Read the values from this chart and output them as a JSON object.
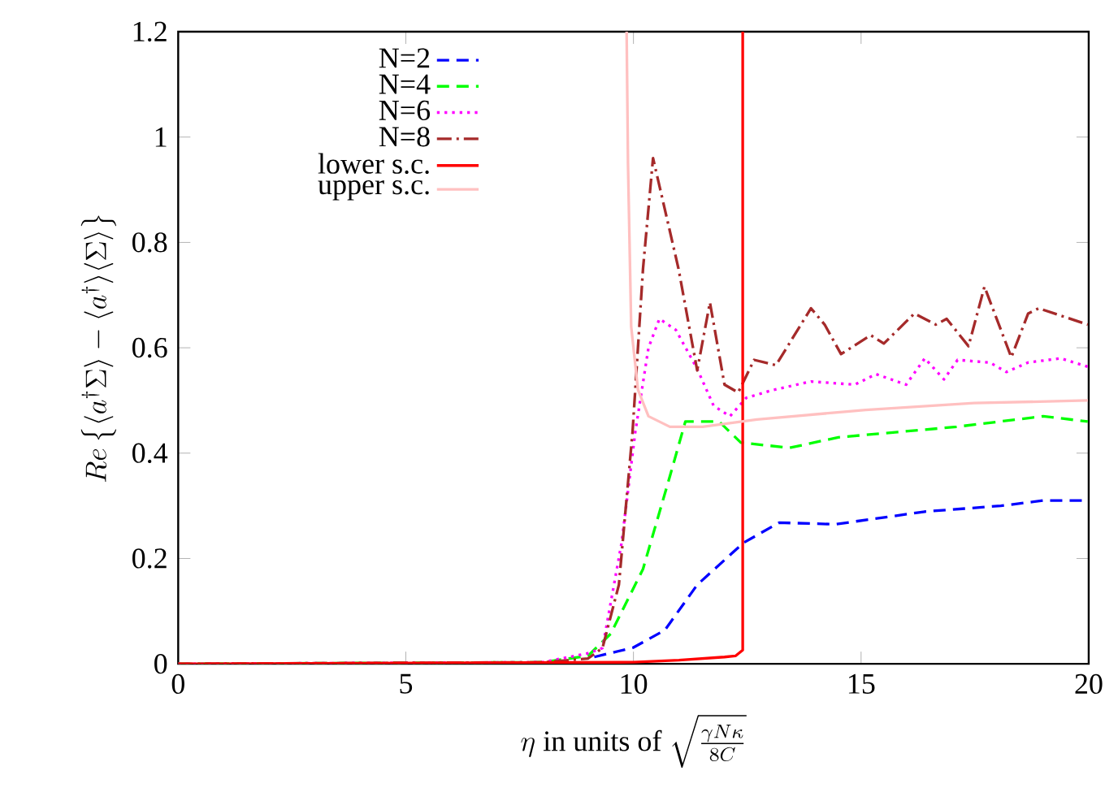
{
  "chart_data": {
    "type": "line",
    "xlabel": "\\eta\\text{ in units of }\\sqrt{\\frac{\\gamma N\\kappa}{8C}}",
    "ylabel": "Re\\left\\{\\langle a^{\\dagger}\\Sigma\\rangle-\\langle a^{\\dagger}\\rangle\\langle\\Sigma\\rangle\\right\\}",
    "xlim": [
      0,
      20
    ],
    "ylim": [
      0,
      1.2
    ],
    "xticks": [
      0,
      5,
      10,
      15,
      20
    ],
    "yticks": [
      0,
      0.2,
      0.4,
      0.6,
      0.8,
      1,
      1.2
    ],
    "legend": "top left",
    "grid": false,
    "marker": "none",
    "series": [
      {
        "name": "N=2",
        "color": "#0000ff",
        "line_style": "dashed",
        "x": [
          9.14,
          10,
          10.69,
          11.4,
          12.42,
          13.2,
          14.44,
          16.4,
          18.07,
          19.0,
          20
        ],
        "values": [
          0.013,
          0.031,
          0.064,
          0.15,
          0.23,
          0.268,
          0.265,
          0.289,
          0.3,
          0.31,
          0.31
        ]
      },
      {
        "name": "N=4",
        "color": "#00ff00",
        "line_style": "dashed",
        "x": [
          0,
          8,
          9,
          9.5,
          10.21,
          10.8,
          11.14,
          11.88,
          12.36,
          13.43,
          14.5,
          15.8,
          17.1,
          19.0,
          19.98
        ],
        "values": [
          0,
          0.003,
          0.015,
          0.057,
          0.18,
          0.356,
          0.46,
          0.46,
          0.42,
          0.41,
          0.43,
          0.44,
          0.45,
          0.47,
          0.46
        ]
      },
      {
        "name": "N=6",
        "color": "#ff00ff",
        "line_style": "dotted",
        "x": [
          0,
          8,
          9,
          9.32,
          9.74,
          10.04,
          10.33,
          10.57,
          10.93,
          11.4,
          11.76,
          12.12,
          12.48,
          13.07,
          13.9,
          14.86,
          15.33,
          15.99,
          16.4,
          16.82,
          17.12,
          17.83,
          18.19,
          18.67,
          19.38,
          19.98
        ],
        "values": [
          0,
          0.003,
          0.02,
          0.03,
          0.23,
          0.44,
          0.6,
          0.655,
          0.634,
          0.56,
          0.49,
          0.47,
          0.505,
          0.52,
          0.536,
          0.53,
          0.55,
          0.53,
          0.58,
          0.54,
          0.577,
          0.572,
          0.554,
          0.572,
          0.58,
          0.564
        ]
      },
      {
        "name": "N=8",
        "color": "#a52a2a",
        "line_style": "dashdot",
        "x": [
          0,
          8,
          9,
          9.32,
          9.68,
          9.98,
          10.21,
          10.43,
          10.99,
          11.4,
          11.68,
          12.0,
          12.3,
          12.65,
          13.13,
          13.9,
          14.2,
          14.56,
          15.21,
          15.5,
          16.17,
          16.64,
          16.88,
          17.36,
          17.71,
          18.3,
          18.67,
          18.9,
          19.98
        ],
        "values": [
          0,
          0.003,
          0.01,
          0.03,
          0.15,
          0.44,
          0.75,
          0.96,
          0.75,
          0.557,
          0.686,
          0.53,
          0.515,
          0.577,
          0.567,
          0.675,
          0.644,
          0.588,
          0.624,
          0.608,
          0.665,
          0.644,
          0.655,
          0.603,
          0.716,
          0.582,
          0.665,
          0.675,
          0.644
        ]
      },
      {
        "name": "lower s.c.",
        "color": "#ff0000",
        "line_style": "solid",
        "x": [
          0,
          10,
          11,
          12,
          12.24,
          12.4,
          12.4
        ],
        "values": [
          0,
          0.003,
          0.007,
          0.013,
          0.015,
          0.026,
          1.2
        ]
      },
      {
        "name": "upper s.c.",
        "color": "#ffc0c0",
        "line_style": "solid",
        "x": [
          9.85,
          9.88,
          9.95,
          10.1,
          10.33,
          10.8,
          11.52,
          12.71,
          15.1,
          17.48,
          19.98
        ],
        "values": [
          1.2,
          0.95,
          0.64,
          0.52,
          0.47,
          0.45,
          0.45,
          0.464,
          0.482,
          0.495,
          0.5
        ]
      }
    ]
  }
}
